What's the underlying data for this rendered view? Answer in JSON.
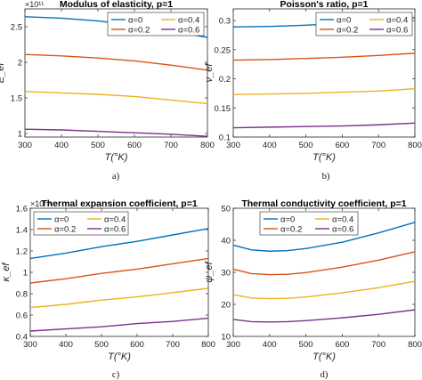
{
  "figure": {
    "captions": [
      "a)",
      "b)",
      "c)",
      "d)"
    ]
  },
  "legend_entries": [
    "α=0",
    "α=0.4",
    "α=0.2",
    "α=0.6"
  ],
  "chart_data": [
    {
      "type": "line",
      "title": "Modulus of elasticity, p=1",
      "xlabel": "T(°K)",
      "ylabel": "E_ef",
      "y_exponent": "×10¹¹",
      "xlim": [
        300,
        800
      ],
      "ylim": [
        0.95,
        2.75
      ],
      "xticks": [
        "300",
        "400",
        "500",
        "600",
        "700",
        "800"
      ],
      "yticks": [
        "1",
        "1.5",
        "2",
        "2.5"
      ],
      "ytick_values": [
        1,
        1.5,
        2,
        2.5
      ],
      "legend_position": "top-right",
      "series": [
        {
          "name": "α=0",
          "color": "#0072bd",
          "x": [
            300,
            400,
            500,
            600,
            700,
            800
          ],
          "y": [
            2.64,
            2.62,
            2.58,
            2.52,
            2.44,
            2.35
          ]
        },
        {
          "name": "α=0.2",
          "color": "#d95319",
          "x": [
            300,
            400,
            500,
            600,
            700,
            800
          ],
          "y": [
            2.11,
            2.09,
            2.06,
            2.02,
            1.96,
            1.89
          ]
        },
        {
          "name": "α=0.4",
          "color": "#edb120",
          "x": [
            300,
            400,
            500,
            600,
            700,
            800
          ],
          "y": [
            1.59,
            1.57,
            1.55,
            1.52,
            1.47,
            1.42
          ]
        },
        {
          "name": "α=0.6",
          "color": "#7e2f8e",
          "x": [
            300,
            400,
            500,
            600,
            700,
            800
          ],
          "y": [
            1.06,
            1.05,
            1.03,
            1.01,
            0.99,
            0.96
          ]
        }
      ]
    },
    {
      "type": "line",
      "title": "Poisson's ratio, p=1",
      "xlabel": "T(°K)",
      "ylabel": "ν_ef",
      "y_exponent": "",
      "xlim": [
        300,
        800
      ],
      "ylim": [
        0.1,
        0.32
      ],
      "xticks": [
        "300",
        "400",
        "500",
        "600",
        "700",
        "800"
      ],
      "yticks": [
        "0.1",
        "0.15",
        "0.2",
        "0.25",
        "0.3"
      ],
      "ytick_values": [
        0.1,
        0.15,
        0.2,
        0.25,
        0.3
      ],
      "legend_position": "top-right",
      "series": [
        {
          "name": "α=0",
          "color": "#0072bd",
          "x": [
            300,
            400,
            500,
            600,
            700,
            800
          ],
          "y": [
            0.289,
            0.29,
            0.292,
            0.295,
            0.299,
            0.305
          ]
        },
        {
          "name": "α=0.2",
          "color": "#d95319",
          "x": [
            300,
            400,
            500,
            600,
            700,
            800
          ],
          "y": [
            0.232,
            0.233,
            0.235,
            0.237,
            0.24,
            0.244
          ]
        },
        {
          "name": "α=0.4",
          "color": "#edb120",
          "x": [
            300,
            400,
            500,
            600,
            700,
            800
          ],
          "y": [
            0.173,
            0.174,
            0.175,
            0.177,
            0.179,
            0.183
          ]
        },
        {
          "name": "α=0.6",
          "color": "#7e2f8e",
          "x": [
            300,
            400,
            500,
            600,
            700,
            800
          ],
          "y": [
            0.116,
            0.117,
            0.118,
            0.119,
            0.121,
            0.124
          ]
        }
      ]
    },
    {
      "type": "line",
      "title": "Thermal expansion coefficient, p=1",
      "xlabel": "T(°K)",
      "ylabel": "κ_ef",
      "y_exponent": "×10⁻⁵",
      "xlim": [
        300,
        800
      ],
      "ylim": [
        0.4,
        1.6
      ],
      "xticks": [
        "300",
        "400",
        "500",
        "600",
        "700",
        "800"
      ],
      "yticks": [
        "0.4",
        "0.6",
        "0.8",
        "1",
        "1.2",
        "1.4",
        "1.6"
      ],
      "ytick_values": [
        0.4,
        0.6,
        0.8,
        1,
        1.2,
        1.4,
        1.6
      ],
      "legend_position": "top-left",
      "series": [
        {
          "name": "α=0",
          "color": "#0072bd",
          "x": [
            300,
            400,
            500,
            600,
            700,
            800
          ],
          "y": [
            1.13,
            1.18,
            1.24,
            1.29,
            1.35,
            1.41
          ]
        },
        {
          "name": "α=0.2",
          "color": "#d95319",
          "x": [
            300,
            400,
            500,
            600,
            700,
            800
          ],
          "y": [
            0.9,
            0.94,
            0.99,
            1.03,
            1.08,
            1.13
          ]
        },
        {
          "name": "α=0.4",
          "color": "#edb120",
          "x": [
            300,
            400,
            500,
            600,
            700,
            800
          ],
          "y": [
            0.67,
            0.7,
            0.74,
            0.77,
            0.81,
            0.85
          ]
        },
        {
          "name": "α=0.6",
          "color": "#7e2f8e",
          "x": [
            300,
            400,
            500,
            600,
            700,
            800
          ],
          "y": [
            0.45,
            0.47,
            0.49,
            0.52,
            0.54,
            0.57
          ]
        }
      ]
    },
    {
      "type": "line",
      "title": "Thermal conductivity coefficient, p=1",
      "xlabel": "T(°K)",
      "ylabel": "ψ_ef",
      "y_exponent": "",
      "xlim": [
        300,
        800
      ],
      "ylim": [
        10,
        50
      ],
      "xticks": [
        "300",
        "400",
        "500",
        "600",
        "700",
        "800"
      ],
      "yticks": [
        "10",
        "20",
        "30",
        "40",
        "50"
      ],
      "ytick_values": [
        10,
        20,
        30,
        40,
        50
      ],
      "legend_position": "top",
      "series": [
        {
          "name": "α=0",
          "color": "#0072bd",
          "x": [
            300,
            350,
            400,
            450,
            500,
            600,
            700,
            800
          ],
          "y": [
            38.5,
            37.0,
            36.6,
            36.8,
            37.4,
            39.4,
            42.3,
            45.6
          ]
        },
        {
          "name": "α=0.2",
          "color": "#d95319",
          "x": [
            300,
            350,
            400,
            450,
            500,
            600,
            700,
            800
          ],
          "y": [
            31.0,
            29.6,
            29.3,
            29.4,
            29.9,
            31.6,
            33.8,
            36.4
          ]
        },
        {
          "name": "α=0.4",
          "color": "#edb120",
          "x": [
            300,
            350,
            400,
            450,
            500,
            600,
            700,
            800
          ],
          "y": [
            23.0,
            22.0,
            21.8,
            21.9,
            22.3,
            23.6,
            25.2,
            27.2
          ]
        },
        {
          "name": "α=0.6",
          "color": "#7e2f8e",
          "x": [
            300,
            350,
            400,
            450,
            500,
            600,
            700,
            800
          ],
          "y": [
            15.3,
            14.6,
            14.5,
            14.6,
            14.9,
            15.8,
            16.9,
            18.3
          ]
        }
      ]
    }
  ]
}
